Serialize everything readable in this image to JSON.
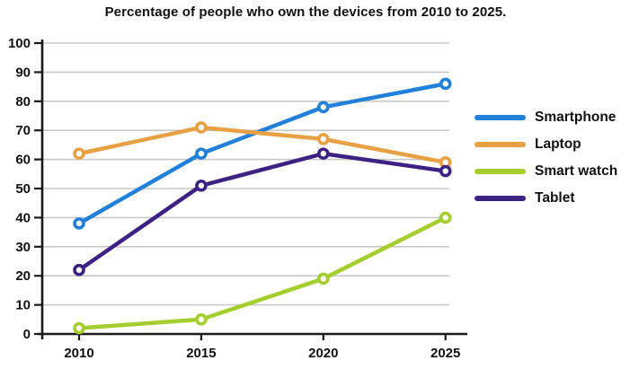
{
  "page": {
    "background": "#ffffff"
  },
  "chart_data": {
    "type": "line",
    "title": "Percentage of people who own the devices from 2010 to 2025.",
    "categories": [
      "2010",
      "2015",
      "2020",
      "2025"
    ],
    "series": [
      {
        "name": "Smartphone",
        "color": "#2280d8",
        "values": [
          38,
          62,
          78,
          86
        ]
      },
      {
        "name": "Laptop",
        "color": "#e8a044",
        "values": [
          62,
          71,
          67,
          59
        ]
      },
      {
        "name": "Smart watch",
        "color": "#a5cd2e",
        "values": [
          2,
          5,
          19,
          40
        ]
      },
      {
        "name": "Tablet",
        "color": "#3c2383",
        "values": [
          22,
          51,
          62,
          56
        ]
      }
    ],
    "xlabel": "",
    "ylabel": "",
    "ylim": [
      0,
      100
    ],
    "yticks": [
      0,
      10,
      20,
      30,
      40,
      50,
      60,
      70,
      80,
      90,
      100
    ],
    "grid": true,
    "legend_position": "right",
    "marker": "open-circle",
    "axis_color": "#1a1a1a",
    "grid_color": "#c9c9c9",
    "tick_label_color": "#111111"
  }
}
